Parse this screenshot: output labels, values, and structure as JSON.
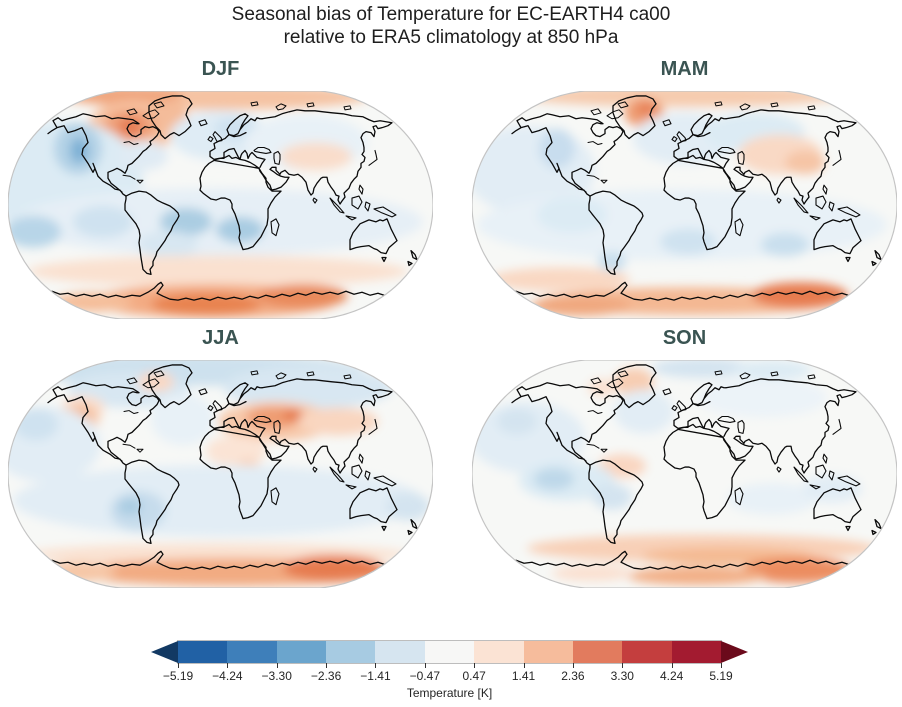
{
  "figure": {
    "title_line1": "Seasonal bias of Temperature for EC-EARTH4 ca00",
    "title_line2": "relative to ERA5 climatology at 850 hPa"
  },
  "panels": [
    {
      "id": "djf",
      "label": "DJF"
    },
    {
      "id": "mam",
      "label": "MAM"
    },
    {
      "id": "jja",
      "label": "JJA"
    },
    {
      "id": "son",
      "label": "SON"
    }
  ],
  "colorbar": {
    "label": "Temperature [K]",
    "tick_labels": [
      "−5.19",
      "−4.24",
      "−3.30",
      "−2.36",
      "−1.41",
      "−0.47",
      "0.47",
      "1.41",
      "2.36",
      "3.30",
      "4.24",
      "5.19"
    ],
    "under_color": "#123963",
    "over_color": "#6b0a1b",
    "segment_colors": [
      "#2161a5",
      "#3e7fba",
      "#6ba5cd",
      "#a7cbe2",
      "#d6e5f0",
      "#f7f7f6",
      "#fbe3d4",
      "#f6bc9c",
      "#e27b5e",
      "#c43e3e",
      "#a31b30"
    ]
  },
  "chart_data": {
    "type": "heatmap",
    "title": "Seasonal bias of Temperature for EC-EARTH4 ca00 relative to ERA5 climatology at 850 hPa",
    "projection": "Robinson",
    "layout": "2x2 panel grid of world maps with shared horizontal colorbar below",
    "panels": [
      "DJF",
      "MAM",
      "JJA",
      "SON"
    ],
    "variable": "Temperature bias vs ERA5 at 850 hPa",
    "units": "K",
    "colorbar": {
      "label": "Temperature [K]",
      "levels": [
        -5.19,
        -4.24,
        -3.3,
        -2.36,
        -1.41,
        -0.47,
        0.47,
        1.41,
        2.36,
        3.3,
        4.24,
        5.19
      ],
      "extend": "both",
      "colormap": "RdBu_r"
    },
    "qualitative_features": {
      "DJF": "Strong warm bias (+2 to +3 K) over NE Canada/Baffin and Greenland; cool bias core over western North America; light cool bias over most oceans and Europe; warm band over Antarctica and Arctic rim",
      "MAM": "Warm bias over Greenland and Arctic rim; weak cool bias over northern oceans; slight warm speckle over central Asia; warm band over Antarctica, strongest on the Atlantic/Indian side",
      "JJA": "Cool bias band across the Arctic; warm bias over western US, Mediterranean, Middle East and central Asia; light cool southern oceans; warm band over Antarctica",
      "SON": "Mostly weak cool bias over oceans; light warm bias over Greenland; warm band over Southern Ocean and Antarctica, strongest east of the date line"
    }
  }
}
